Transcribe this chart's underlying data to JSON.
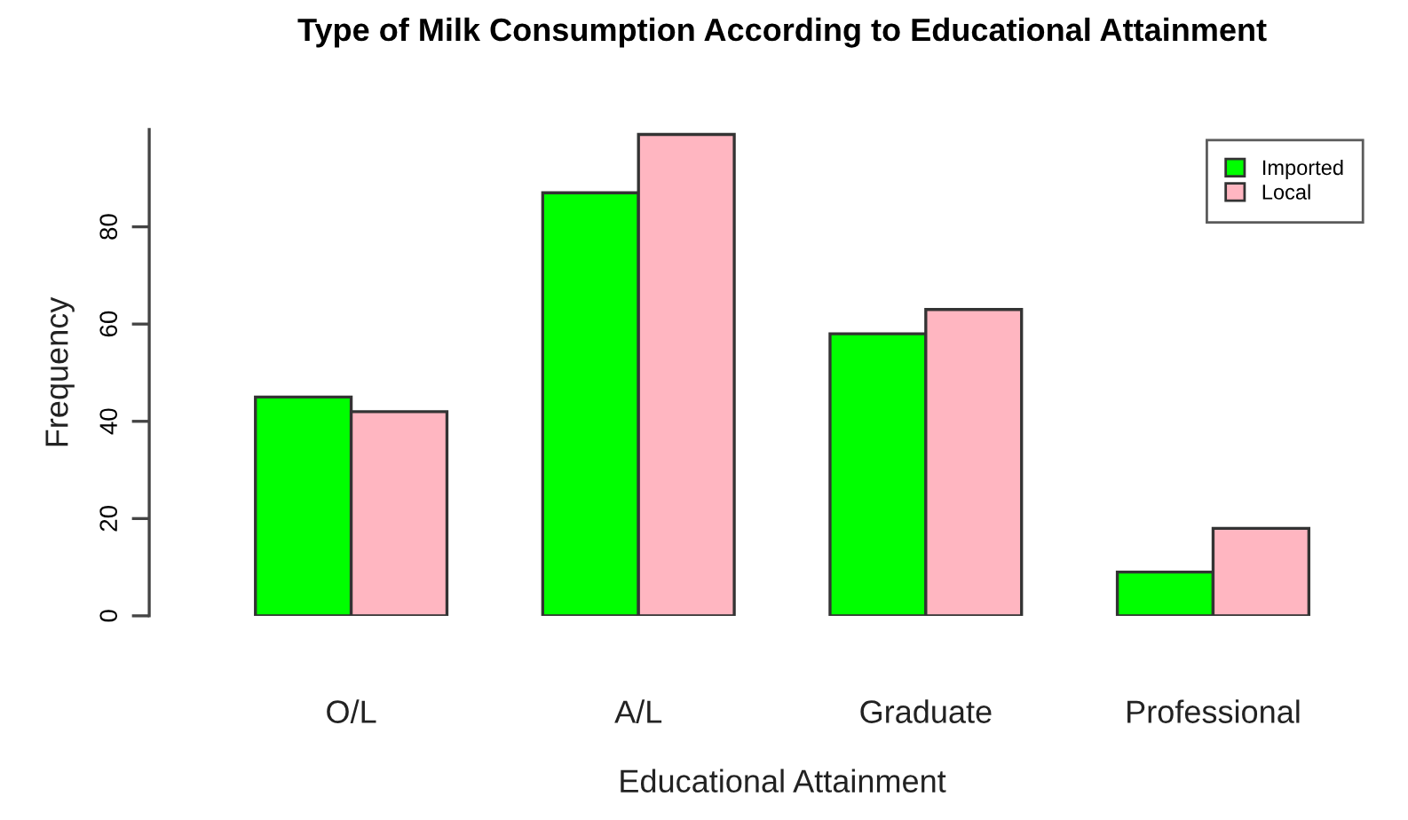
{
  "chart_data": {
    "type": "bar",
    "title": "Type of Milk Consumption According to Educational Attainment",
    "xlabel": "Educational Attainment",
    "ylabel": "Frequency",
    "categories": [
      "O/L",
      "A/L",
      "Graduate",
      "Professional"
    ],
    "series": [
      {
        "name": "Imported",
        "color": "#00ff00",
        "values": [
          45,
          87,
          58,
          9
        ]
      },
      {
        "name": "Local",
        "color": "#ffb6c1",
        "values": [
          42,
          99,
          63,
          18
        ]
      }
    ],
    "ylim": [
      0,
      100
    ],
    "yticks": [
      0,
      20,
      40,
      60,
      80
    ],
    "grid": false,
    "legend": "top right"
  }
}
